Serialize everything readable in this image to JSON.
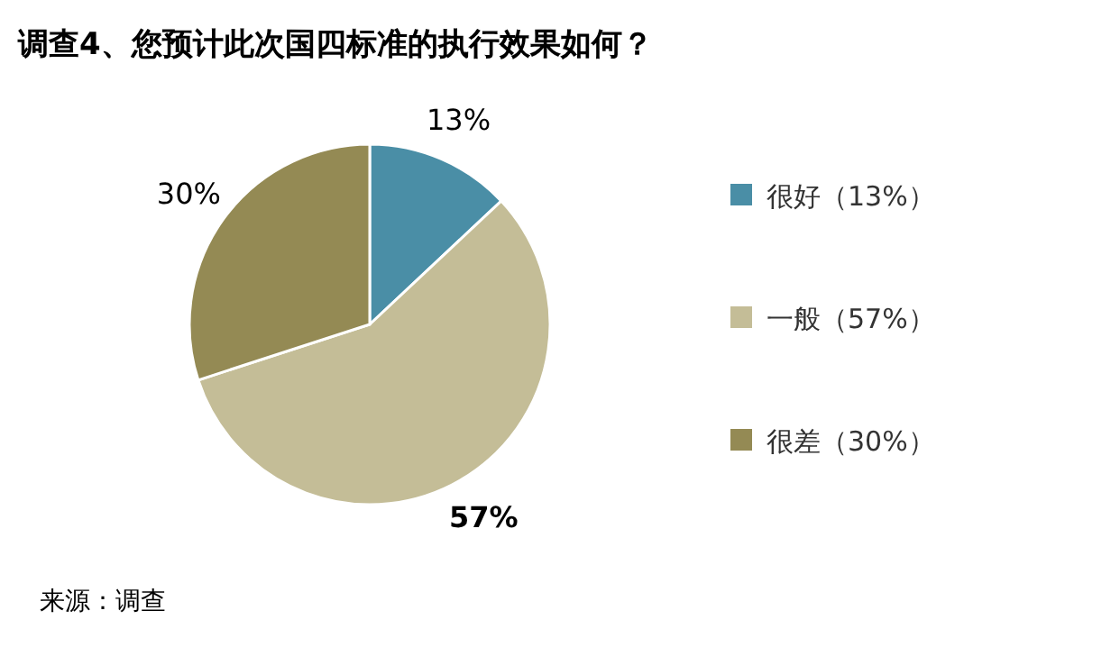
{
  "chart_data": {
    "type": "pie",
    "title": "调查4、您预计此次国四标准的执行效果如何？",
    "categories": [
      "很好（13%）",
      "一般（57%）",
      "很差（30%）"
    ],
    "values": [
      13,
      57,
      30
    ],
    "colors": [
      "#4a8ea6",
      "#c4bd97",
      "#948a54"
    ],
    "value_labels": [
      "13%",
      "**57%**",
      "30%"
    ],
    "legend": "right",
    "annotations": [
      "来源：调查"
    ]
  }
}
